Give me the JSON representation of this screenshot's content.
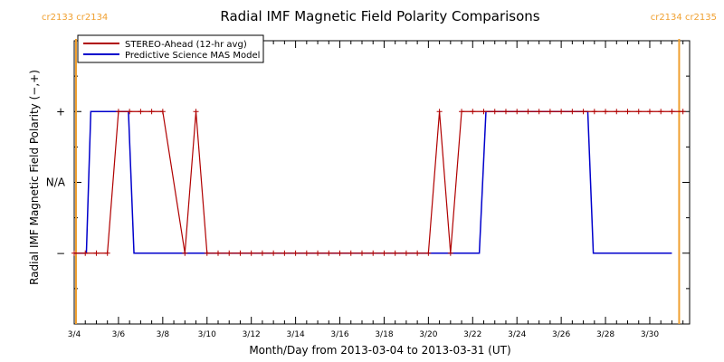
{
  "colors": {
    "stereo": "#b00000",
    "model": "#0000cc",
    "carrington": "#f0a030",
    "axis": "#000000"
  },
  "chart_data": {
    "type": "line",
    "title": "Radial IMF Magnetic Field Polarity Comparisons",
    "xlabel": "Month/Day from 2013-03-04 to 2013-03-31 (UT)",
    "ylabel": "Radial IMF Magnetic Field Polarity (−,+)",
    "xlim": [
      0,
      27.8
    ],
    "ylim": [
      -2,
      2
    ],
    "y_ticks": [
      {
        "value": 1,
        "label": "+"
      },
      {
        "value": 0,
        "label": "N/A"
      },
      {
        "value": -1,
        "label": "−"
      }
    ],
    "x_ticks": [
      {
        "value": 0,
        "label": "3/4"
      },
      {
        "value": 2,
        "label": "3/6"
      },
      {
        "value": 4,
        "label": "3/8"
      },
      {
        "value": 6,
        "label": "3/10"
      },
      {
        "value": 8,
        "label": "3/12"
      },
      {
        "value": 10,
        "label": "3/14"
      },
      {
        "value": 12,
        "label": "3/16"
      },
      {
        "value": 14,
        "label": "3/18"
      },
      {
        "value": 16,
        "label": "3/20"
      },
      {
        "value": 18,
        "label": "3/22"
      },
      {
        "value": 20,
        "label": "3/24"
      },
      {
        "value": 22,
        "label": "3/26"
      },
      {
        "value": 24,
        "label": "3/28"
      },
      {
        "value": 26,
        "label": "3/30"
      }
    ],
    "legend_position": "top-left",
    "series": [
      {
        "name": "STEREO-Ahead (12-hr avg)",
        "points": [
          [
            0.0,
            -1
          ],
          [
            0.5,
            -1
          ],
          [
            1.0,
            -1
          ],
          [
            1.5,
            -1
          ],
          [
            2.0,
            1
          ],
          [
            2.5,
            1
          ],
          [
            3.0,
            1
          ],
          [
            3.5,
            1
          ],
          [
            4.0,
            1
          ],
          [
            5.0,
            -1
          ],
          [
            5.5,
            1
          ],
          [
            6.0,
            -1
          ],
          [
            6.5,
            -1
          ],
          [
            7.0,
            -1
          ],
          [
            7.5,
            -1
          ],
          [
            8.0,
            -1
          ],
          [
            8.5,
            -1
          ],
          [
            9.0,
            -1
          ],
          [
            9.5,
            -1
          ],
          [
            10.0,
            -1
          ],
          [
            10.5,
            -1
          ],
          [
            11.0,
            -1
          ],
          [
            11.5,
            -1
          ],
          [
            12.0,
            -1
          ],
          [
            12.5,
            -1
          ],
          [
            13.0,
            -1
          ],
          [
            13.5,
            -1
          ],
          [
            14.0,
            -1
          ],
          [
            14.5,
            -1
          ],
          [
            15.0,
            -1
          ],
          [
            15.5,
            -1
          ],
          [
            16.0,
            -1
          ],
          [
            16.5,
            1
          ],
          [
            17.0,
            -1
          ],
          [
            17.5,
            1
          ],
          [
            18.0,
            1
          ],
          [
            18.5,
            1
          ],
          [
            19.0,
            1
          ],
          [
            19.5,
            1
          ],
          [
            20.0,
            1
          ],
          [
            20.5,
            1
          ],
          [
            21.0,
            1
          ],
          [
            21.5,
            1
          ],
          [
            22.0,
            1
          ],
          [
            22.5,
            1
          ],
          [
            23.0,
            1
          ],
          [
            23.5,
            1
          ],
          [
            24.0,
            1
          ],
          [
            24.5,
            1
          ],
          [
            25.0,
            1
          ],
          [
            25.5,
            1
          ],
          [
            26.0,
            1
          ],
          [
            26.5,
            1
          ],
          [
            27.0,
            1
          ],
          [
            27.5,
            1
          ]
        ]
      },
      {
        "name": "Predictive Science MAS Model",
        "points": [
          [
            0.0,
            -1
          ],
          [
            0.55,
            -1
          ],
          [
            0.75,
            1
          ],
          [
            2.45,
            1
          ],
          [
            2.7,
            -1
          ],
          [
            18.3,
            -1
          ],
          [
            18.6,
            1
          ],
          [
            23.2,
            1
          ],
          [
            23.45,
            -1
          ],
          [
            27.0,
            -1
          ]
        ]
      }
    ],
    "carrington_lines": [
      {
        "x": 0.0,
        "label": "cr2133 cr2134",
        "anchor": "start"
      },
      {
        "x": 27.0,
        "label": "cr2134 cr2135",
        "anchor": "end"
      }
    ]
  }
}
